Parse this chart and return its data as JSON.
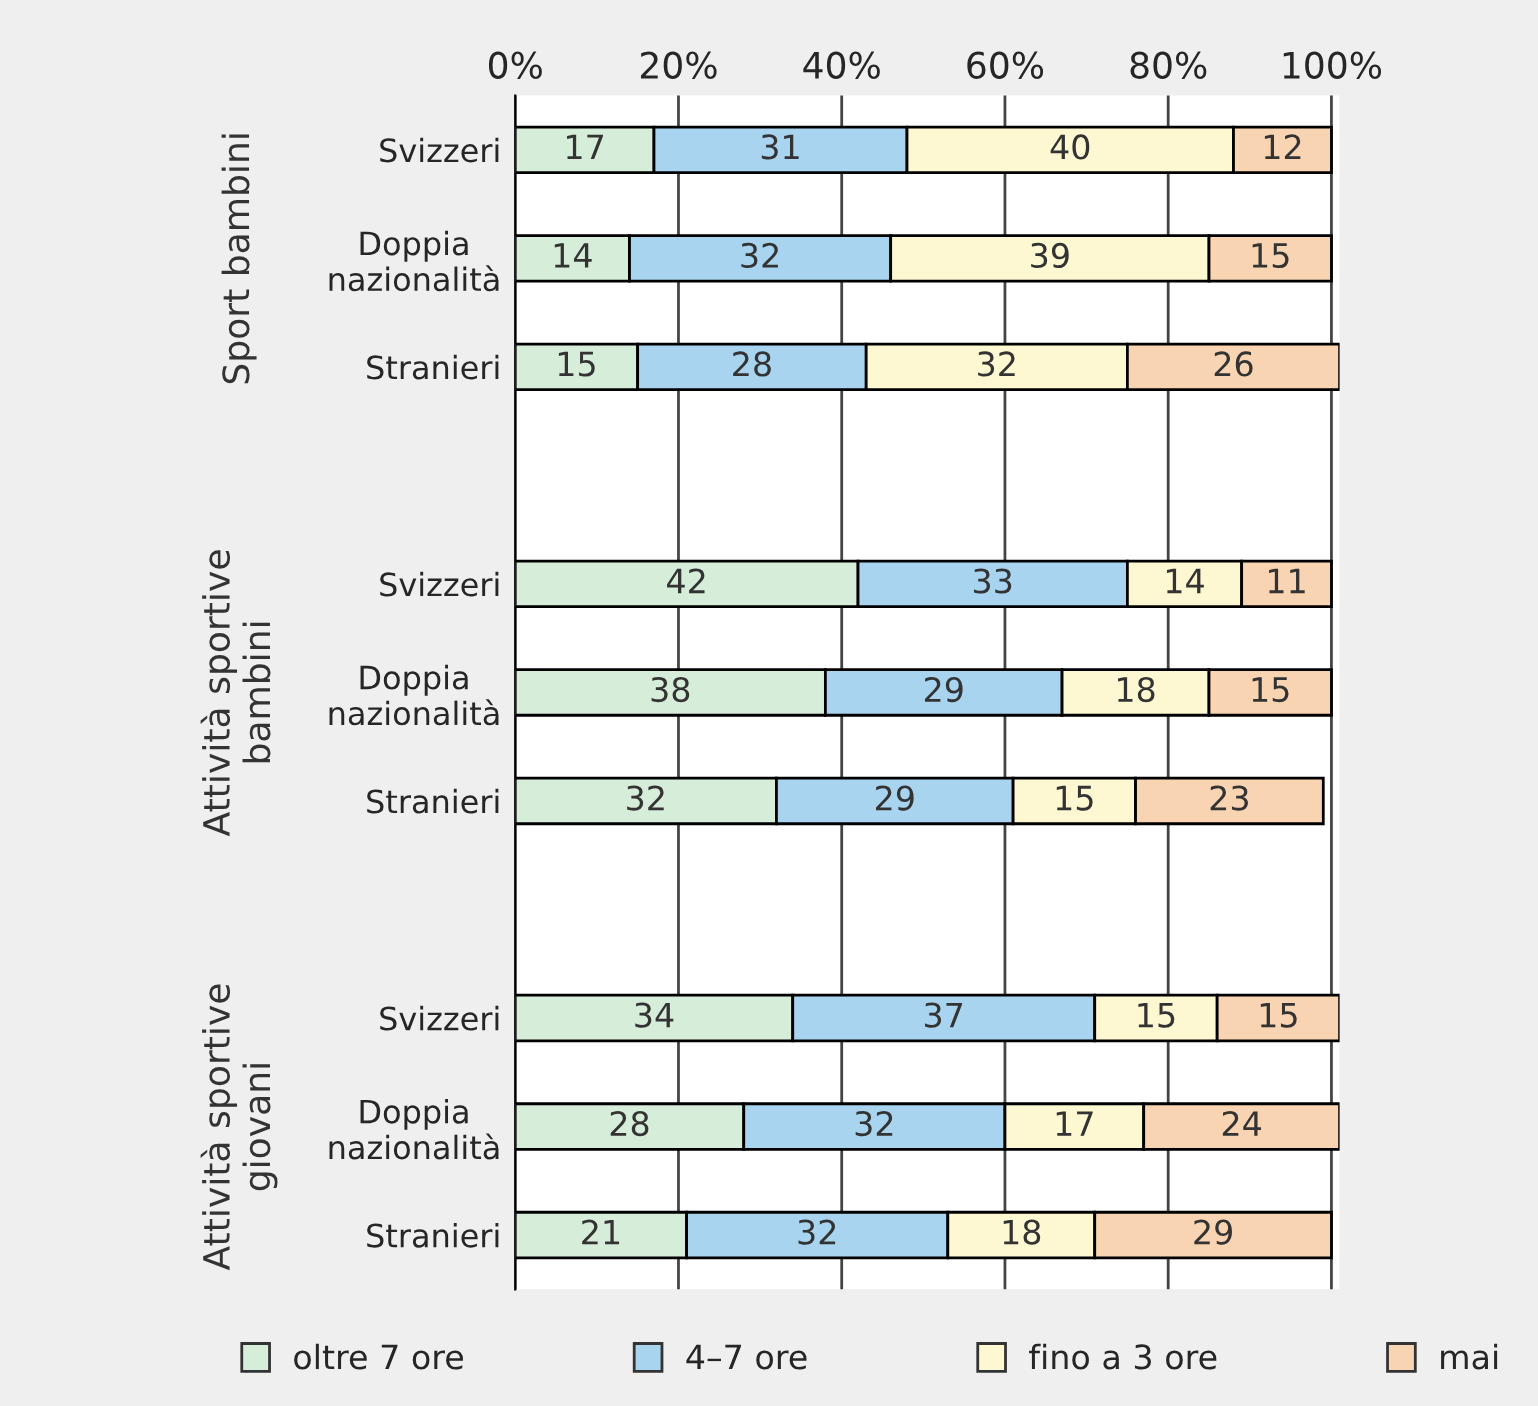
{
  "chart_data": {
    "type": "bar",
    "orientation": "horizontal",
    "stacked": true,
    "data_labels": true,
    "grid": "x",
    "legend": "bottom",
    "categories": [
      "Svizzeri",
      "Doppia\nnazionalità",
      "Stranieri",
      null,
      "Svizzeri",
      "Doppia\nnazionalità",
      "Stranieri",
      null,
      "Svizzeri",
      "Doppia\nnazionalità",
      "Stranieri"
    ],
    "series": [
      {
        "name": "oltre 7 ore",
        "color": "#d6edda",
        "values": [
          17,
          14,
          15,
          null,
          42,
          38,
          32,
          null,
          34,
          28,
          21
        ]
      },
      {
        "name": "4–7 ore",
        "color": "#a8d4f0",
        "values": [
          31,
          32,
          28,
          null,
          33,
          29,
          29,
          null,
          37,
          32,
          32
        ]
      },
      {
        "name": "fino a 3 ore",
        "color": "#fdf7d2",
        "values": [
          40,
          39,
          32,
          null,
          14,
          18,
          15,
          null,
          15,
          17,
          18
        ]
      },
      {
        "name": "mai",
        "color": "#f9d4b2",
        "values": [
          12,
          15,
          26,
          null,
          11,
          15,
          23,
          null,
          15,
          24,
          29
        ]
      }
    ],
    "xlim": [
      0,
      101
    ],
    "xticks": [
      {
        "value": 0,
        "label": "0%"
      },
      {
        "value": 20,
        "label": "20%"
      },
      {
        "value": 40,
        "label": "40%"
      },
      {
        "value": 60,
        "label": "60%"
      },
      {
        "value": 80,
        "label": "80%"
      },
      {
        "value": 100,
        "label": "100%"
      }
    ],
    "annotations": [
      "Sport bambini",
      "Attività sportive\nbambini",
      "Attività sportive\ngiovani"
    ]
  }
}
